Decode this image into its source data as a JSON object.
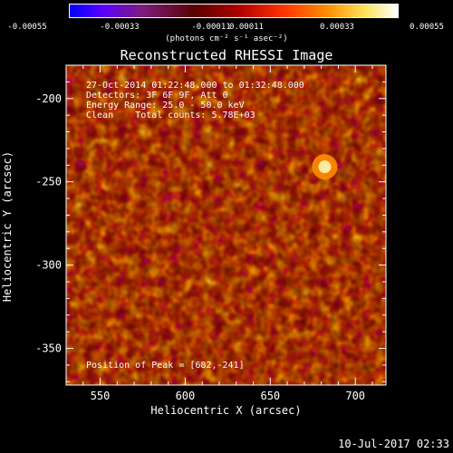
{
  "colorbar": {
    "ticks": [
      "-0.00055",
      "-0.00033",
      "-0.00011",
      "0.00011",
      "0.00033",
      "0.00055"
    ],
    "unit_label": "(photons cm⁻² s⁻¹ asec⁻²)"
  },
  "chart_data": {
    "type": "heatmap",
    "title": "Reconstructed RHESSI Image",
    "xlabel": "Heliocentric X (arcsec)",
    "ylabel": "Heliocentric Y (arcsec)",
    "xlim": [
      530,
      718
    ],
    "ylim": [
      -372,
      -180
    ],
    "x_ticks": [
      "550",
      "600",
      "650",
      "700"
    ],
    "y_ticks": [
      "-200",
      "-250",
      "-300",
      "-350"
    ],
    "value_range": [
      -0.00055,
      0.00055
    ],
    "peak": {
      "x": 682,
      "y": -241
    },
    "annotations": [
      "27-Oct-2014 01:22:48.000 to 01:32:48.000",
      "Detectors: 3F 6F 9F, Att 0",
      "Energy Range: 25.0 - 50.0 keV",
      "Clean    Total counts: 5.78E+03"
    ],
    "peak_label": "Position of Peak = [682,-241]"
  },
  "footer": {
    "timestamp": "10-Jul-2017 02:33"
  }
}
